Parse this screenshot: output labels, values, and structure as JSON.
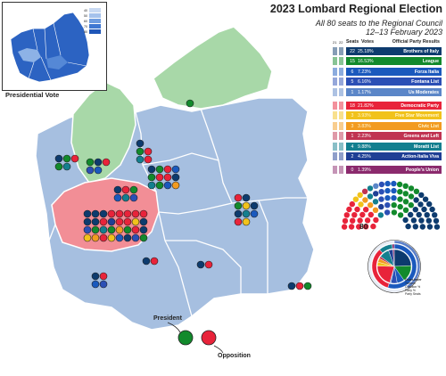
{
  "header": {
    "title": "2023 Lombard Regional Election",
    "subtitle_line1": "All 80 seats to the Regional Council",
    "subtitle_line2": "12–13 February 2023"
  },
  "inset": {
    "caption": "Presidential Vote",
    "legend": [
      "40",
      "50",
      "60",
      "70",
      "80"
    ],
    "legend_colors": [
      "#c8d9f2",
      "#a5c2ec",
      "#6f9de0",
      "#3f78d2",
      "#1f56b8"
    ]
  },
  "table": {
    "columns": [
      "Seats",
      "Votes",
      "Official Party Results"
    ],
    "scale_labels": [
      "21",
      "22"
    ],
    "parties": [
      {
        "seats": "22",
        "votes": "25.18%",
        "name": "Brothers of Italy",
        "color": "#0d3b6e",
        "side": "center-right"
      },
      {
        "seats": "15",
        "votes": "16.53%",
        "name": "League",
        "color": "#128a2c",
        "side": "center-right"
      },
      {
        "seats": "6",
        "votes": "7.23%",
        "name": "Forza Italia",
        "color": "#1a59bd",
        "side": "center-right"
      },
      {
        "seats": "5",
        "votes": "6.16%",
        "name": "Fontana List",
        "color": "#2b4fb5",
        "side": "center-right"
      },
      {
        "seats": "1",
        "votes": "1.17%",
        "name": "Us Moderates",
        "color": "#5b86c8",
        "side": "center-right"
      },
      {
        "seats": "18",
        "votes": "21.82%",
        "name": "Democratic Party",
        "color": "#e8233a",
        "side": "center-left"
      },
      {
        "seats": "3",
        "votes": "3.93%",
        "name": "Five Star Movement",
        "color": "#f1c21b",
        "side": "center-left"
      },
      {
        "seats": "3",
        "votes": "3.83%",
        "name": "Civic List",
        "color": "#f29b20",
        "side": "center-left"
      },
      {
        "seats": "1",
        "votes": "2.23%",
        "name": "Greens and Left",
        "color": "#c03351",
        "side": "center-left"
      },
      {
        "seats": "4",
        "votes": "9.88%",
        "name": "Moratti List",
        "color": "#137f8f",
        "side": "third-pole"
      },
      {
        "seats": "2",
        "votes": "4.25%",
        "name": "Action-Italia Viva",
        "color": "#1f3f95",
        "side": "third-pole"
      },
      {
        "seats": "0",
        "votes": "1.39%",
        "name": "People's Union",
        "color": "#8b2a6d",
        "side": "other"
      }
    ]
  },
  "hemicycle": {
    "total": "80"
  },
  "pie_legend": {
    "title": "Outer-Inner",
    "lines": [
      "Turnout",
      "Coalition %",
      "Party %",
      "Party Seats"
    ]
  },
  "map_legend": {
    "president": "President",
    "opposition": "Opposition"
  },
  "colors": {
    "center_right_region": "#a6bfe0",
    "league_region": "#a8d8a8",
    "center_left_region": "#f28e96",
    "border": "#ffffff"
  }
}
